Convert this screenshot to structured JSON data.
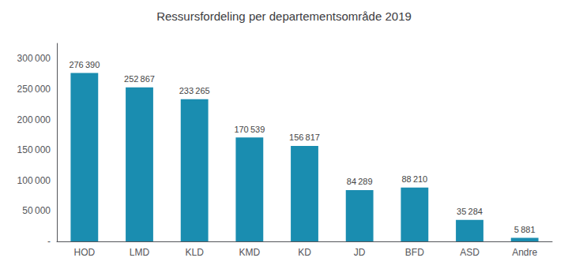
{
  "chart_data": {
    "type": "bar",
    "title": "Ressursfordeling per departementsområde 2019",
    "categories": [
      "HOD",
      "LMD",
      "KLD",
      "KMD",
      "KD",
      "JD",
      "BFD",
      "ASD",
      "Andre"
    ],
    "values": [
      276390,
      252867,
      233265,
      170539,
      156817,
      84289,
      88210,
      35284,
      5881
    ],
    "value_labels": [
      "276 390",
      "252 867",
      "233 265",
      "170 539",
      "156 817",
      "84 289",
      "88 210",
      "35 284",
      "5 881"
    ],
    "data_labels": true,
    "color": "#1a8db0",
    "ylim": [
      0,
      325000
    ],
    "yticks": [
      {
        "value": 0,
        "label": "-"
      },
      {
        "value": 50000,
        "label": "50 000"
      },
      {
        "value": 100000,
        "label": "100 000"
      },
      {
        "value": 150000,
        "label": "150 000"
      },
      {
        "value": 200000,
        "label": "200 000"
      },
      {
        "value": 250000,
        "label": "250 000"
      },
      {
        "value": 300000,
        "label": "300 000"
      }
    ],
    "grid": false
  }
}
